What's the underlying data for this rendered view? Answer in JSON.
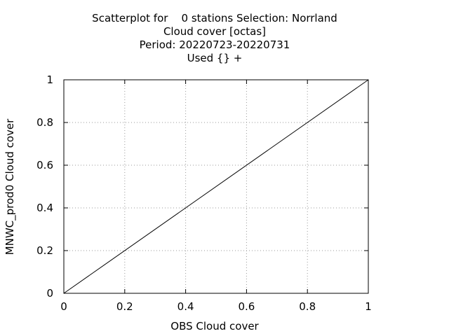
{
  "chart_data": {
    "type": "scatter",
    "title_lines": [
      "Scatterplot for    0 stations Selection: Norrland",
      "Cloud cover [octas]",
      "Period: 20220723-20220731",
      "Used {} +"
    ],
    "xlabel": "OBS Cloud cover",
    "ylabel": "MNWC_prod0 Cloud cover",
    "xlim": [
      0,
      1
    ],
    "ylim": [
      0,
      1
    ],
    "xticks": [
      "0",
      "0.2",
      "0.4",
      "0.6",
      "0.8",
      "1"
    ],
    "yticks": [
      "0",
      "0.2",
      "0.4",
      "0.6",
      "0.8",
      "1"
    ],
    "grid": true,
    "series": [],
    "reference_line": {
      "x": [
        0,
        1
      ],
      "y": [
        0,
        1
      ]
    }
  }
}
